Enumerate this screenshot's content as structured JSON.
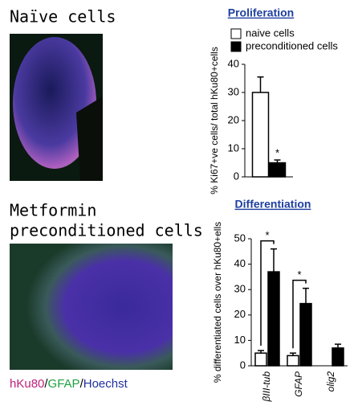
{
  "image_labels": {
    "top": "Naïve cells",
    "bottom_line1": "Metformin",
    "bottom_line2": "preconditioned cells",
    "stain_parts": [
      "hKu80",
      "/",
      "GFAP",
      "/",
      "Hoechst"
    ]
  },
  "chart_data": [
    {
      "type": "bar",
      "title": "Proliferation",
      "y_label": "% Ki67+ve cells/ total hKu80+cells",
      "categories": [
        null
      ],
      "series": [
        {
          "name": "naive cells",
          "color": "#ffffff",
          "values": [
            30
          ],
          "errors": [
            5.5
          ]
        },
        {
          "name": "preconditioned cells",
          "color": "#000000",
          "values": [
            5
          ],
          "errors": [
            1
          ]
        }
      ],
      "annotations": [
        "*"
      ],
      "ylim": [
        0,
        40
      ],
      "yticks": [
        0,
        10,
        20,
        30,
        40
      ],
      "legend": "top"
    },
    {
      "type": "bar",
      "title": "Differentiation",
      "y_label": "% differentiated cells over hKu80+ells",
      "categories": [
        "βIII-tub",
        "GFAP",
        "olig2"
      ],
      "series": [
        {
          "name": null,
          "color": "#ffffff",
          "values": [
            5,
            4,
            null
          ],
          "errors": [
            1,
            1,
            null
          ]
        },
        {
          "name": null,
          "color": "#000000",
          "values": [
            37,
            24.5,
            7
          ],
          "errors": [
            9,
            6,
            1.5
          ]
        }
      ],
      "annotations": [
        "*",
        "*"
      ],
      "ylim": [
        0,
        50
      ],
      "yticks": [
        0,
        10,
        20,
        30,
        40,
        50
      ]
    }
  ]
}
